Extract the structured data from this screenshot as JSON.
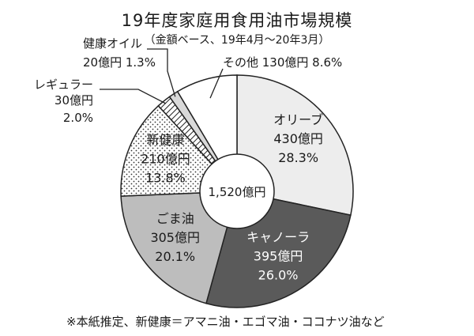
{
  "chart_data": {
    "type": "pie",
    "style": "donut",
    "title": "19年度家庭用食用油市場規模",
    "subtitle": "（金額ベース、19年4月～20年3月）",
    "center_label": "1,520億円",
    "footnote": "※本紙推定、新健康＝アマニ油・エゴマ油・ココナツ油など",
    "unit": "億円",
    "slices": [
      {
        "name": "オリーブ",
        "value": 430,
        "value_label": "430億円",
        "percent": 28.3,
        "percent_label": "28.3%",
        "color": "#ededed",
        "pattern": "none",
        "label_text_color": "#1a1a1a",
        "label_style": "inside"
      },
      {
        "name": "キャノーラ",
        "value": 395,
        "value_label": "395億円",
        "percent": 26.0,
        "percent_label": "26.0%",
        "color": "#5a5a5a",
        "pattern": "none",
        "label_text_color": "#ffffff",
        "label_style": "inside"
      },
      {
        "name": "ごま油",
        "value": 305,
        "value_label": "305億円",
        "percent": 20.1,
        "percent_label": "20.1%",
        "color": "#bdbdbd",
        "pattern": "none",
        "label_text_color": "#1a1a1a",
        "label_style": "inside"
      },
      {
        "name": "新健康",
        "value": 210,
        "value_label": "210億円",
        "percent": 13.8,
        "percent_label": "13.8%",
        "color": "#ffffff",
        "pattern": "dots",
        "label_text_color": "#1a1a1a",
        "label_style": "inside"
      },
      {
        "name": "レギュラー",
        "value": 30,
        "value_label": "30億円",
        "percent": 2.0,
        "percent_label": "2.0%",
        "color": "#ffffff",
        "pattern": "diagonal",
        "label_text_color": "#1a1a1a",
        "label_style": "callout"
      },
      {
        "name": "健康オイル",
        "value": 20,
        "value_label": "20億円",
        "percent": 1.3,
        "percent_label": "1.3%",
        "color": "#d9d9d9",
        "pattern": "none",
        "label_text_color": "#1a1a1a",
        "label_style": "callout"
      },
      {
        "name": "その他",
        "value": 130,
        "value_label": "130億円",
        "percent": 8.6,
        "percent_label": "8.6%",
        "color": "#ffffff",
        "pattern": "none",
        "label_text_color": "#1a1a1a",
        "label_style": "callout"
      }
    ]
  }
}
